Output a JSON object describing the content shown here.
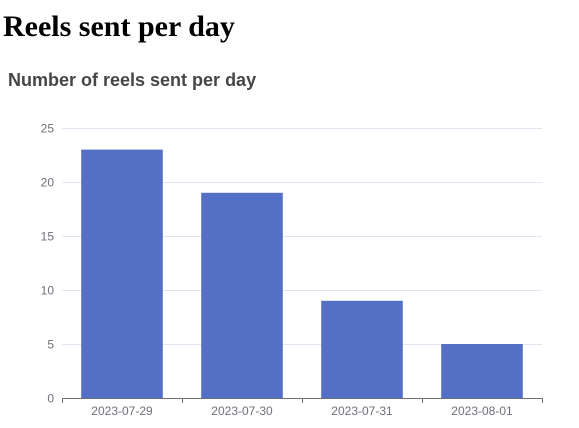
{
  "page": {
    "heading": "Reels sent per day"
  },
  "chart_data": {
    "type": "bar",
    "title": "Number of reels sent per day",
    "xlabel": "",
    "ylabel": "",
    "categories": [
      "2023-07-29",
      "2023-07-30",
      "2023-07-31",
      "2023-08-01"
    ],
    "values": [
      23,
      19,
      9,
      5
    ],
    "ylim": [
      0,
      25
    ],
    "yticks": [
      0,
      5,
      10,
      15,
      20,
      25
    ],
    "grid": true,
    "colors": {
      "bar": "#5470c6",
      "grid": "#e0e6f1",
      "axis": "#6e7079",
      "title": "#464646"
    }
  }
}
